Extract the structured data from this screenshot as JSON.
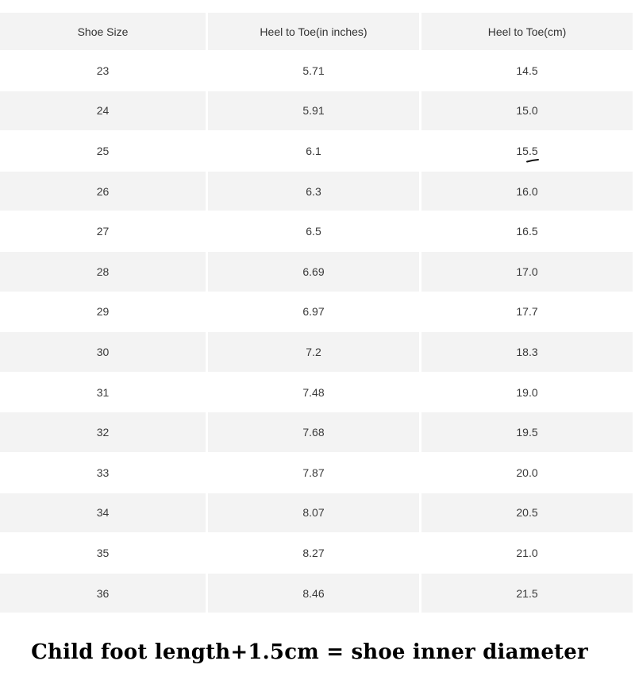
{
  "table": {
    "headers": [
      "Shoe Size",
      "Heel to Toe(in inches)",
      "Heel to Toe(cm)"
    ],
    "rows": [
      [
        "23",
        "5.71",
        "14.5"
      ],
      [
        "24",
        "5.91",
        "15.0"
      ],
      [
        "25",
        "6.1",
        "15.5"
      ],
      [
        "26",
        "6.3",
        "16.0"
      ],
      [
        "27",
        "6.5",
        "16.5"
      ],
      [
        "28",
        "6.69",
        "17.0"
      ],
      [
        "29",
        "6.97",
        "17.7"
      ],
      [
        "30",
        "7.2",
        "18.3"
      ],
      [
        "31",
        "7.48",
        "19.0"
      ],
      [
        "32",
        "7.68",
        "19.5"
      ],
      [
        "33",
        "7.87",
        "20.0"
      ],
      [
        "34",
        "8.07",
        "20.5"
      ],
      [
        "35",
        "8.27",
        "21.0"
      ],
      [
        "36",
        "8.46",
        "21.5"
      ]
    ]
  },
  "footer": {
    "note": "Child foot length+1.5cm = shoe inner diameter"
  },
  "colors": {
    "shaded_row": "#f3f3f3",
    "text": "#333333",
    "footer_text": "#000000"
  }
}
